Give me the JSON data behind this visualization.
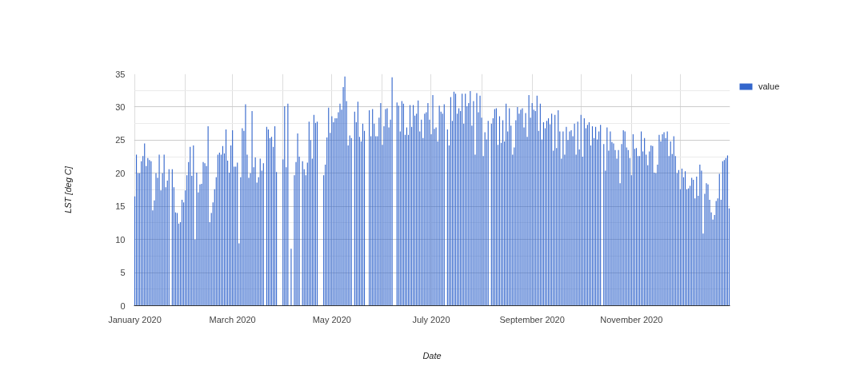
{
  "chart_data": {
    "type": "bar",
    "xlabel": "Date",
    "ylabel": "LST [deg C]",
    "x": [
      "2020-01-01",
      "2020-01-02",
      "2020-01-03",
      "2020-01-04",
      "2020-01-05",
      "2020-01-06",
      "2020-01-07",
      "2020-01-08",
      "2020-01-09",
      "2020-01-10",
      "2020-01-11",
      "2020-01-12",
      "2020-01-13",
      "2020-01-14",
      "2020-01-15",
      "2020-01-16",
      "2020-01-17",
      "2020-01-18",
      "2020-01-19",
      "2020-01-20",
      "2020-01-21",
      "2020-01-22",
      "2020-01-23",
      "2020-01-24",
      "2020-01-25",
      "2020-01-26",
      "2020-01-27",
      "2020-01-28",
      "2020-01-29",
      "2020-01-30",
      "2020-01-31",
      "2020-02-01",
      "2020-02-02",
      "2020-02-03",
      "2020-02-04",
      "2020-02-05",
      "2020-02-06",
      "2020-02-07",
      "2020-02-08",
      "2020-02-09",
      "2020-02-10",
      "2020-02-11",
      "2020-02-12",
      "2020-02-13",
      "2020-02-14",
      "2020-02-15",
      "2020-02-16",
      "2020-02-17",
      "2020-02-18",
      "2020-02-19",
      "2020-02-20",
      "2020-02-21",
      "2020-02-22",
      "2020-02-23",
      "2020-02-24",
      "2020-02-25",
      "2020-02-26",
      "2020-02-27",
      "2020-02-28",
      "2020-02-29",
      "2020-03-01",
      "2020-03-02",
      "2020-03-03",
      "2020-03-04",
      "2020-03-05",
      "2020-03-06",
      "2020-03-07",
      "2020-03-08",
      "2020-03-09",
      "2020-03-10",
      "2020-03-11",
      "2020-03-12",
      "2020-03-13",
      "2020-03-14",
      "2020-03-15",
      "2020-03-16",
      "2020-03-17",
      "2020-03-18",
      "2020-03-19",
      "2020-03-20",
      "2020-03-21",
      "2020-03-22",
      "2020-03-23",
      "2020-03-24",
      "2020-03-25",
      "2020-03-26",
      "2020-03-27",
      "2020-03-28",
      "2020-03-29",
      "2020-03-30",
      "2020-03-31",
      "2020-04-01",
      "2020-04-02",
      "2020-04-03",
      "2020-04-04",
      "2020-04-05",
      "2020-04-06",
      "2020-04-07",
      "2020-04-08",
      "2020-04-09",
      "2020-04-10",
      "2020-04-11",
      "2020-04-12",
      "2020-04-13",
      "2020-04-14",
      "2020-04-15",
      "2020-04-16",
      "2020-04-17",
      "2020-04-18",
      "2020-04-19",
      "2020-04-20",
      "2020-04-21",
      "2020-04-22",
      "2020-04-23",
      "2020-04-24",
      "2020-04-25",
      "2020-04-26",
      "2020-04-27",
      "2020-04-28",
      "2020-04-29",
      "2020-04-30",
      "2020-05-01",
      "2020-05-02",
      "2020-05-03",
      "2020-05-04",
      "2020-05-05",
      "2020-05-06",
      "2020-05-07",
      "2020-05-08",
      "2020-05-09",
      "2020-05-10",
      "2020-05-11",
      "2020-05-12",
      "2020-05-13",
      "2020-05-14",
      "2020-05-15",
      "2020-05-16",
      "2020-05-17",
      "2020-05-18",
      "2020-05-19",
      "2020-05-20",
      "2020-05-21",
      "2020-05-22",
      "2020-05-23",
      "2020-05-24",
      "2020-05-25",
      "2020-05-26",
      "2020-05-27",
      "2020-05-28",
      "2020-05-29",
      "2020-05-30",
      "2020-05-31",
      "2020-06-01",
      "2020-06-02",
      "2020-06-03",
      "2020-06-04",
      "2020-06-05",
      "2020-06-06",
      "2020-06-07",
      "2020-06-08",
      "2020-06-09",
      "2020-06-10",
      "2020-06-11",
      "2020-06-12",
      "2020-06-13",
      "2020-06-14",
      "2020-06-15",
      "2020-06-16",
      "2020-06-17",
      "2020-06-18",
      "2020-06-19",
      "2020-06-20",
      "2020-06-21",
      "2020-06-22",
      "2020-06-23",
      "2020-06-24",
      "2020-06-25",
      "2020-06-26",
      "2020-06-27",
      "2020-06-28",
      "2020-06-29",
      "2020-06-30",
      "2020-07-01",
      "2020-07-02",
      "2020-07-03",
      "2020-07-04",
      "2020-07-05",
      "2020-07-06",
      "2020-07-07",
      "2020-07-08",
      "2020-07-09",
      "2020-07-10",
      "2020-07-11",
      "2020-07-12",
      "2020-07-13",
      "2020-07-14",
      "2020-07-15",
      "2020-07-16",
      "2020-07-17",
      "2020-07-18",
      "2020-07-19",
      "2020-07-20",
      "2020-07-21",
      "2020-07-22",
      "2020-07-23",
      "2020-07-24",
      "2020-07-25",
      "2020-07-26",
      "2020-07-27",
      "2020-07-28",
      "2020-07-29",
      "2020-07-30",
      "2020-07-31",
      "2020-08-01",
      "2020-08-02",
      "2020-08-03",
      "2020-08-04",
      "2020-08-05",
      "2020-08-06",
      "2020-08-07",
      "2020-08-08",
      "2020-08-09",
      "2020-08-10",
      "2020-08-11",
      "2020-08-12",
      "2020-08-13",
      "2020-08-14",
      "2020-08-15",
      "2020-08-16",
      "2020-08-17",
      "2020-08-18",
      "2020-08-19",
      "2020-08-20",
      "2020-08-21",
      "2020-08-22",
      "2020-08-23",
      "2020-08-24",
      "2020-08-25",
      "2020-08-26",
      "2020-08-27",
      "2020-08-28",
      "2020-08-29",
      "2020-08-30",
      "2020-08-31",
      "2020-09-01",
      "2020-09-02",
      "2020-09-03",
      "2020-09-04",
      "2020-09-05",
      "2020-09-06",
      "2020-09-07",
      "2020-09-08",
      "2020-09-09",
      "2020-09-10",
      "2020-09-11",
      "2020-09-12",
      "2020-09-13",
      "2020-09-14",
      "2020-09-15",
      "2020-09-16",
      "2020-09-17",
      "2020-09-18",
      "2020-09-19",
      "2020-09-20",
      "2020-09-21",
      "2020-09-22",
      "2020-09-23",
      "2020-09-24",
      "2020-09-25",
      "2020-09-26",
      "2020-09-27",
      "2020-09-28",
      "2020-09-29",
      "2020-09-30",
      "2020-10-01",
      "2020-10-02",
      "2020-10-03",
      "2020-10-04",
      "2020-10-05",
      "2020-10-06",
      "2020-10-07",
      "2020-10-08",
      "2020-10-09",
      "2020-10-10",
      "2020-10-11",
      "2020-10-12",
      "2020-10-13",
      "2020-10-14",
      "2020-10-15",
      "2020-10-16",
      "2020-10-17",
      "2020-10-18",
      "2020-10-19",
      "2020-10-20",
      "2020-10-21",
      "2020-10-22",
      "2020-10-23",
      "2020-10-24",
      "2020-10-25",
      "2020-10-26",
      "2020-10-27",
      "2020-10-28",
      "2020-10-29",
      "2020-10-30",
      "2020-10-31",
      "2020-11-01",
      "2020-11-02",
      "2020-11-03",
      "2020-11-04",
      "2020-11-05",
      "2020-11-06",
      "2020-11-07",
      "2020-11-08",
      "2020-11-09",
      "2020-11-10",
      "2020-11-11",
      "2020-11-12",
      "2020-11-13",
      "2020-11-14",
      "2020-11-15",
      "2020-11-16",
      "2020-11-17",
      "2020-11-18",
      "2020-11-19",
      "2020-11-20",
      "2020-11-21",
      "2020-11-22",
      "2020-11-23",
      "2020-11-24",
      "2020-11-25",
      "2020-11-26",
      "2020-11-27",
      "2020-11-28",
      "2020-11-29",
      "2020-11-30",
      "2020-12-01",
      "2020-12-02",
      "2020-12-03",
      "2020-12-04",
      "2020-12-05",
      "2020-12-06",
      "2020-12-07",
      "2020-12-08",
      "2020-12-09",
      "2020-12-10",
      "2020-12-11",
      "2020-12-12",
      "2020-12-13",
      "2020-12-14",
      "2020-12-15",
      "2020-12-16",
      "2020-12-17",
      "2020-12-18",
      "2020-12-19",
      "2020-12-20",
      "2020-12-21",
      "2020-12-22",
      "2020-12-23",
      "2020-12-24",
      "2020-12-25",
      "2020-12-26",
      "2020-12-27",
      "2020-12-28",
      "2020-12-29",
      "2020-12-30",
      "2020-12-31"
    ],
    "series": [
      {
        "name": "value",
        "color": "#3366cc",
        "values": [
          16.5,
          22.8,
          20.0,
          20.0,
          21.8,
          22.6,
          24.5,
          21.1,
          22.3,
          22.0,
          21.8,
          14.4,
          15.9,
          20.0,
          19.3,
          22.8,
          17.4,
          20.0,
          22.8,
          17.9,
          18.9,
          20.6,
          null,
          20.6,
          17.9,
          14.1,
          14.0,
          12.4,
          12.6,
          16.0,
          15.6,
          17.4,
          19.7,
          21.7,
          24.0,
          19.6,
          24.2,
          10.0,
          20.1,
          17.1,
          18.3,
          18.4,
          21.7,
          21.5,
          21.1,
          27.1,
          12.6,
          14.0,
          15.6,
          17.6,
          19.4,
          22.8,
          23.1,
          22.8,
          24.1,
          23.0,
          26.6,
          21.9,
          20.1,
          24.2,
          26.5,
          21.0,
          21.0,
          21.6,
          9.4,
          19.4,
          26.8,
          26.4,
          30.4,
          22.8,
          19.3,
          20.0,
          29.4,
          20.9,
          22.4,
          18.6,
          19.4,
          22.2,
          20.4,
          21.5,
          null,
          27.0,
          26.6,
          25.3,
          25.5,
          24.0,
          27.1,
          20.2,
          null,
          null,
          null,
          22.1,
          30.1,
          20.9,
          30.5,
          null,
          8.6,
          null,
          19.7,
          21.7,
          26.0,
          22.5,
          null,
          21.8,
          20.6,
          19.7,
          21.6,
          27.8,
          25.0,
          22.2,
          28.8,
          27.6,
          27.8,
          null,
          null,
          null,
          19.7,
          21.3,
          25.4,
          29.9,
          26.1,
          28.6,
          27.7,
          28.3,
          28.3,
          29.2,
          30.5,
          29.6,
          33.0,
          34.6,
          30.9,
          24.2,
          25.7,
          25.3,
          null,
          29.3,
          27.7,
          30.8,
          25.5,
          24.8,
          27.5,
          26.4,
          null,
          null,
          29.5,
          25.6,
          29.7,
          27.5,
          25.6,
          25.6,
          28.4,
          30.6,
          24.3,
          27.1,
          29.7,
          29.8,
          26.9,
          28.1,
          34.5,
          null,
          null,
          30.7,
          30.2,
          26.3,
          30.9,
          30.5,
          25.8,
          26.9,
          25.8,
          30.3,
          27.0,
          30.3,
          28.7,
          29.0,
          31.0,
          26.3,
          28.1,
          25.3,
          29.0,
          29.2,
          30.6,
          28.1,
          25.9,
          31.8,
          26.7,
          26.9,
          24.8,
          30.2,
          29.3,
          29.0,
          30.4,
          null,
          26.6,
          24.2,
          31.5,
          27.9,
          32.3,
          32.0,
          29.0,
          29.8,
          29.4,
          32.0,
          27.5,
          32.0,
          30.1,
          30.6,
          32.4,
          27.2,
          30.9,
          22.8,
          32.1,
          29.2,
          31.7,
          28.4,
          22.6,
          26.2,
          25.1,
          27.9,
          null,
          27.5,
          28.3,
          29.7,
          29.8,
          24.3,
          28.6,
          24.6,
          28.0,
          24.8,
          30.5,
          26.3,
          29.8,
          27.2,
          22.8,
          23.9,
          28.0,
          30.0,
          29.0,
          29.6,
          29.8,
          26.9,
          29.1,
          25.5,
          31.8,
          28.4,
          30.6,
          29.6,
          29.4,
          31.7,
          26.4,
          30.5,
          25.1,
          27.7,
          26.8,
          27.9,
          28.3,
          27.4,
          29.0,
          23.4,
          28.8,
          23.8,
          29.5,
          26.3,
          22.2,
          26.3,
          22.8,
          27.0,
          25.0,
          26.3,
          26.5,
          25.6,
          27.5,
          22.8,
          27.8,
          23.6,
          28.8,
          22.5,
          28.3,
          26.8,
          27.3,
          27.7,
          24.2,
          27.1,
          25.3,
          27.0,
          25.1,
          26.3,
          27.3,
          null,
          24.4,
          20.4,
          26.9,
          23.4,
          26.3,
          24.7,
          24.5,
          23.5,
          22.2,
          23.5,
          18.5,
          24.4,
          26.5,
          26.3,
          23.9,
          23.5,
          22.3,
          19.7,
          25.9,
          23.7,
          23.8,
          22.6,
          22.6,
          26.3,
          23.3,
          25.3,
          22.8,
          21.2,
          23.3,
          24.2,
          24.1,
          20.1,
          20.0,
          21.3,
          25.8,
          24.8,
          25.9,
          26.2,
          25.3,
          26.3,
          22.6,
          24.8,
          22.9,
          25.6,
          22.6,
          20.0,
          20.5,
          17.6,
          20.7,
          19.4,
          20.3,
          17.6,
          17.7,
          18.1,
          19.3,
          19.0,
          16.2,
          19.5,
          16.6,
          21.3,
          20.4,
          10.9,
          16.9,
          18.5,
          18.3,
          16.0,
          14.1,
          13.0,
          13.7,
          15.8,
          16.2,
          19.9,
          16.0,
          21.8,
          22.0,
          22.3,
          22.7,
          14.7
        ]
      }
    ],
    "xlim": [
      "2019-12-31T12:00",
      "2020-12-31T12:00"
    ],
    "xticks": [
      {
        "value": "2020-01-01",
        "label": "January 2020"
      },
      {
        "value": "2020-02-01",
        "label": null
      },
      {
        "value": "2020-03-01",
        "label": "March 2020"
      },
      {
        "value": "2020-04-01",
        "label": null
      },
      {
        "value": "2020-05-01",
        "label": "May 2020"
      },
      {
        "value": "2020-06-01",
        "label": null
      },
      {
        "value": "2020-07-01",
        "label": "July 2020"
      },
      {
        "value": "2020-08-01",
        "label": null
      },
      {
        "value": "2020-09-01",
        "label": "September 2020"
      },
      {
        "value": "2020-10-01",
        "label": null
      },
      {
        "value": "2020-11-01",
        "label": "November 2020"
      },
      {
        "value": "2020-12-01",
        "label": null
      }
    ],
    "ylim": [
      0,
      35
    ],
    "yticks": [
      0,
      {
        "value": 2.5,
        "label": null
      },
      5,
      {
        "value": 7.5,
        "label": null
      },
      10,
      {
        "value": 12.5,
        "label": null
      },
      15,
      {
        "value": 17.5,
        "label": null
      },
      20,
      {
        "value": 22.5,
        "label": null
      },
      25,
      {
        "value": 27.5,
        "label": null
      },
      30,
      {
        "value": 32.5,
        "label": null
      },
      35
    ],
    "grid": true,
    "legend": "right"
  }
}
